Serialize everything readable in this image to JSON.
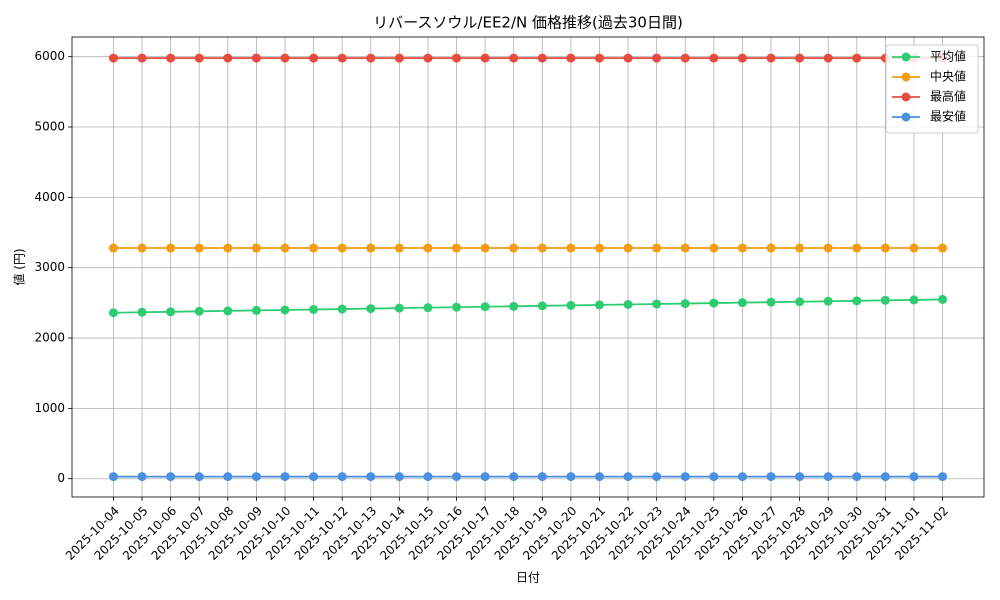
{
  "chart_data": {
    "type": "line",
    "title": "リバースソウル/EE2/N 価格推移(過去30日間)",
    "x_label": "日付",
    "y_label": "値 (円)",
    "categories": [
      "2025-10-04",
      "2025-10-05",
      "2025-10-06",
      "2025-10-07",
      "2025-10-08",
      "2025-10-09",
      "2025-10-10",
      "2025-10-11",
      "2025-10-12",
      "2025-10-13",
      "2025-10-14",
      "2025-10-15",
      "2025-10-16",
      "2025-10-17",
      "2025-10-18",
      "2025-10-19",
      "2025-10-20",
      "2025-10-21",
      "2025-10-22",
      "2025-10-23",
      "2025-10-24",
      "2025-10-25",
      "2025-10-26",
      "2025-10-27",
      "2025-10-28",
      "2025-10-29",
      "2025-10-30",
      "2025-10-31",
      "2025-11-01",
      "2025-11-02"
    ],
    "series": [
      {
        "name": "平均値",
        "color": "#2ecc71",
        "values": [
          2360,
          2367,
          2373,
          2380,
          2386,
          2393,
          2399,
          2406,
          2412,
          2419,
          2425,
          2432,
          2438,
          2445,
          2451,
          2458,
          2464,
          2471,
          2477,
          2484,
          2490,
          2497,
          2503,
          2510,
          2516,
          2523,
          2529,
          2536,
          2542,
          2549
        ]
      },
      {
        "name": "中央値",
        "color": "#f39c12",
        "values": [
          3280,
          3280,
          3280,
          3280,
          3280,
          3280,
          3280,
          3280,
          3280,
          3280,
          3280,
          3280,
          3280,
          3280,
          3280,
          3280,
          3280,
          3280,
          3280,
          3280,
          3280,
          3280,
          3280,
          3280,
          3280,
          3280,
          3280,
          3280,
          3280,
          3280
        ]
      },
      {
        "name": "最高値",
        "color": "#e74c3c",
        "values": [
          5980,
          5980,
          5980,
          5980,
          5980,
          5980,
          5980,
          5980,
          5980,
          5980,
          5980,
          5980,
          5980,
          5980,
          5980,
          5980,
          5980,
          5980,
          5980,
          5980,
          5980,
          5980,
          5980,
          5980,
          5980,
          5980,
          5980,
          5980,
          5980,
          5980
        ]
      },
      {
        "name": "最安値",
        "color": "#4a90e2",
        "values": [
          30,
          30,
          30,
          30,
          30,
          30,
          30,
          30,
          30,
          30,
          30,
          30,
          30,
          30,
          30,
          30,
          30,
          30,
          30,
          30,
          30,
          30,
          30,
          30,
          30,
          30,
          30,
          30,
          30,
          30
        ]
      }
    ],
    "ylim": [
      -260,
      6280
    ],
    "yticks": [
      0,
      1000,
      2000,
      3000,
      4000,
      5000,
      6000
    ],
    "grid": true,
    "legend": "upper-right"
  }
}
